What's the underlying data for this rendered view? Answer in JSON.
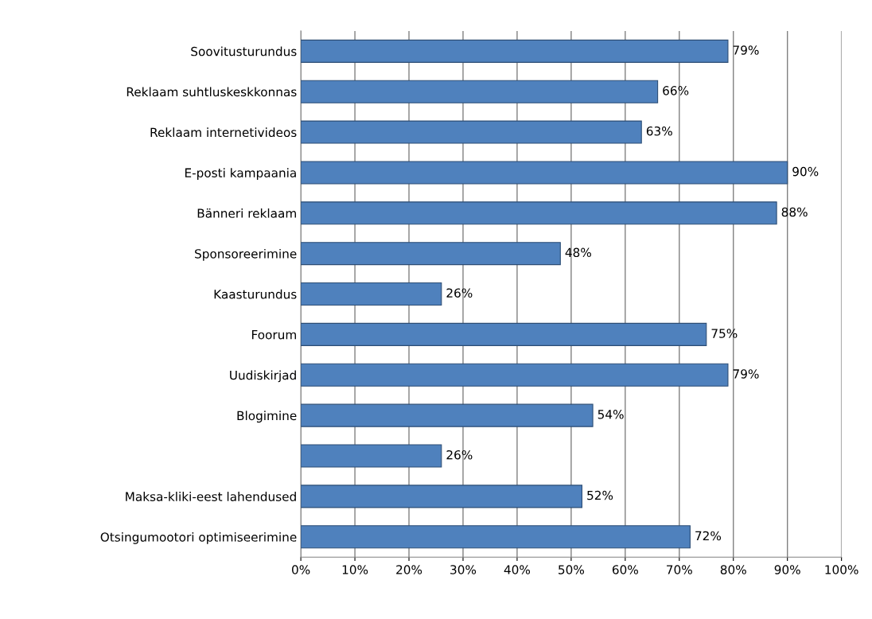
{
  "chart_data": {
    "type": "bar",
    "orientation": "horizontal",
    "categories": [
      "Soovitusturundus",
      "Reklaam suhtluskeskkonnas",
      "Reklaam internetivideos",
      "E-posti kampaania",
      "Bänneri reklaam",
      "Sponsoreerimine",
      "Kaasturundus",
      "Foorum",
      "Uudiskirjad",
      "Blogimine",
      null,
      "Maksa-kliki-eest lahendused",
      "Otsingumootori optimiseerimine"
    ],
    "values": [
      79,
      66,
      63,
      90,
      88,
      48,
      26,
      75,
      79,
      54,
      26,
      52,
      72
    ],
    "value_labels": [
      "79%",
      "66%",
      "63%",
      "90%",
      "88%",
      "48%",
      "26%",
      "75%",
      "79%",
      "54%",
      "26%",
      "52%",
      "72%"
    ],
    "color": "#4f81bd",
    "xlim": [
      0,
      100
    ],
    "xticks": [
      {
        "value": 0,
        "label": "0%"
      },
      {
        "value": 10,
        "label": "10%"
      },
      {
        "value": 20,
        "label": "20%"
      },
      {
        "value": 30,
        "label": "30%"
      },
      {
        "value": 40,
        "label": "40%"
      },
      {
        "value": 50,
        "label": "50%"
      },
      {
        "value": 60,
        "label": "60%"
      },
      {
        "value": 70,
        "label": "70%"
      },
      {
        "value": 80,
        "label": "80%"
      },
      {
        "value": 90,
        "label": "90%"
      },
      {
        "value": 100,
        "label": "100%"
      }
    ],
    "grid": "x",
    "legend": false
  }
}
